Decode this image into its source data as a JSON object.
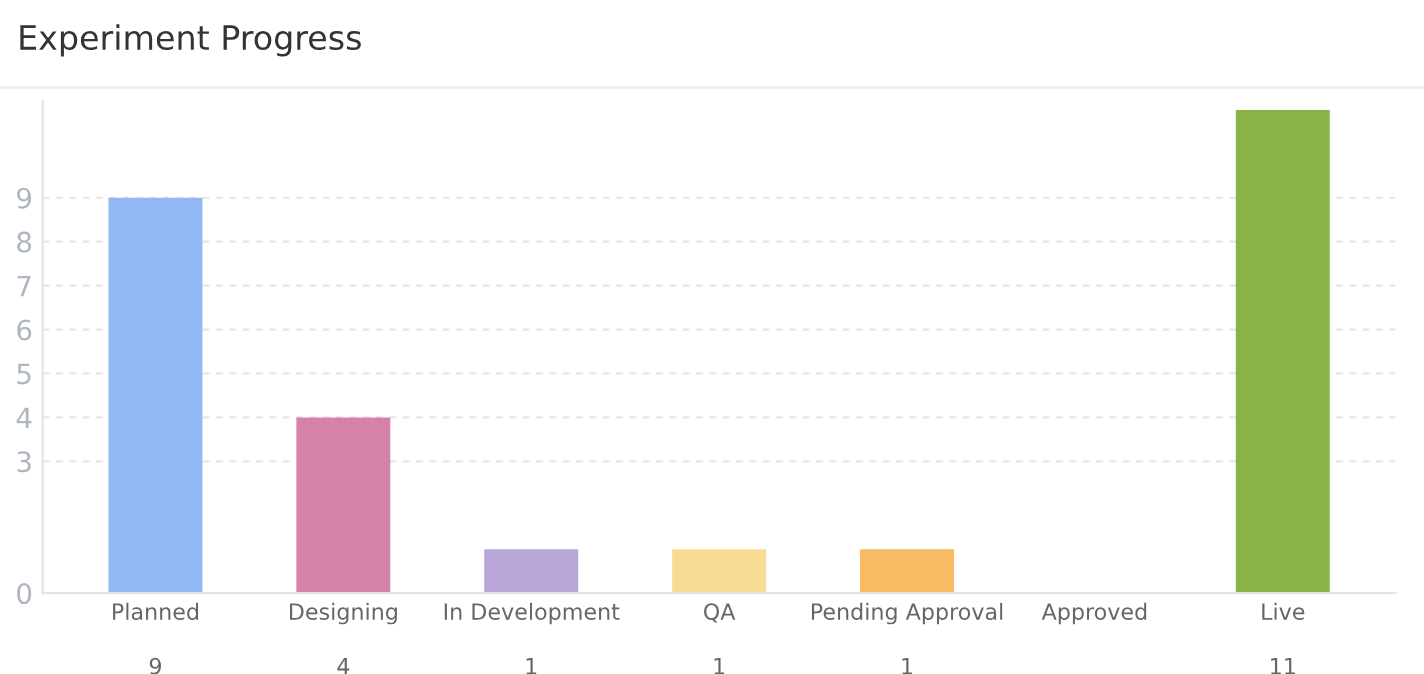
{
  "chart_data": {
    "type": "bar",
    "title": "Experiment Progress",
    "categories": [
      "Planned",
      "Designing",
      "In Development",
      "QA",
      "Pending Approval",
      "Approved",
      "Live"
    ],
    "values": [
      9,
      4,
      1,
      1,
      1,
      null,
      11
    ],
    "value_labels": [
      "9",
      "4",
      "1",
      "1",
      "1",
      null,
      "11"
    ],
    "colors": [
      "#92b8f3",
      "#d582a8",
      "#b9a6d8",
      "#f9dc94",
      "#f7bb63",
      "#cccccc",
      "#8ab346"
    ],
    "ylim": [
      0,
      11.2
    ],
    "yticks": [
      0,
      3,
      4,
      5,
      6,
      7,
      8,
      9
    ],
    "grid": "y",
    "legend": false
  }
}
